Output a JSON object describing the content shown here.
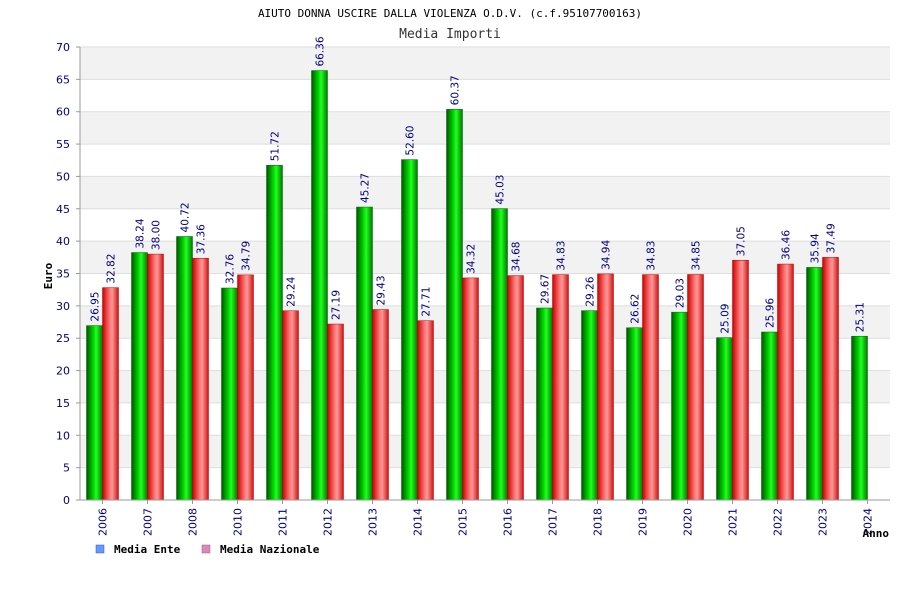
{
  "chart_data": {
    "type": "bar",
    "title": "AIUTO DONNA USCIRE DALLA VIOLENZA O.D.V. (c.f.95107700163)",
    "subtitle": "Media Importi",
    "xlabel": "Anno",
    "ylabel": "Euro",
    "ylim": [
      0,
      70
    ],
    "ytick_step": 5,
    "grid": true,
    "legend_position": "bottom-left",
    "categories": [
      "2006",
      "2007",
      "2008",
      "2010",
      "2011",
      "2012",
      "2013",
      "2014",
      "2015",
      "2016",
      "2017",
      "2018",
      "2019",
      "2020",
      "2021",
      "2022",
      "2023",
      "2024"
    ],
    "series": [
      {
        "name": "Media Ente",
        "color": "#00aa00",
        "legend_color": "#6699ff",
        "values": [
          26.95,
          38.24,
          40.72,
          32.76,
          51.72,
          66.36,
          45.27,
          52.6,
          60.37,
          45.03,
          29.67,
          29.26,
          26.62,
          29.03,
          25.09,
          25.96,
          35.94,
          25.31
        ],
        "labels": [
          "26.95",
          "38.24",
          "40.72",
          "32.76",
          "51.72",
          "66.36",
          "45.27",
          "52.60",
          "60.37",
          "45.03",
          "29.67",
          "29.26",
          "26.62",
          "29.03",
          "25.09",
          "25.96",
          "35.94",
          "25.31"
        ]
      },
      {
        "name": "Media Nazionale",
        "color": "#ee2222",
        "legend_color": "#dd88bb",
        "values": [
          32.82,
          38.0,
          37.36,
          34.79,
          29.24,
          27.19,
          29.43,
          27.71,
          34.32,
          34.68,
          34.83,
          34.94,
          34.83,
          34.85,
          37.05,
          36.46,
          37.49,
          null
        ],
        "labels": [
          "32.82",
          "38.00",
          "37.36",
          "34.79",
          "29.24",
          "27.19",
          "29.43",
          "27.71",
          "34.32",
          "34.68",
          "34.83",
          "34.94",
          "34.83",
          "34.85",
          "37.05",
          "36.46",
          "37.49",
          null
        ]
      }
    ]
  }
}
